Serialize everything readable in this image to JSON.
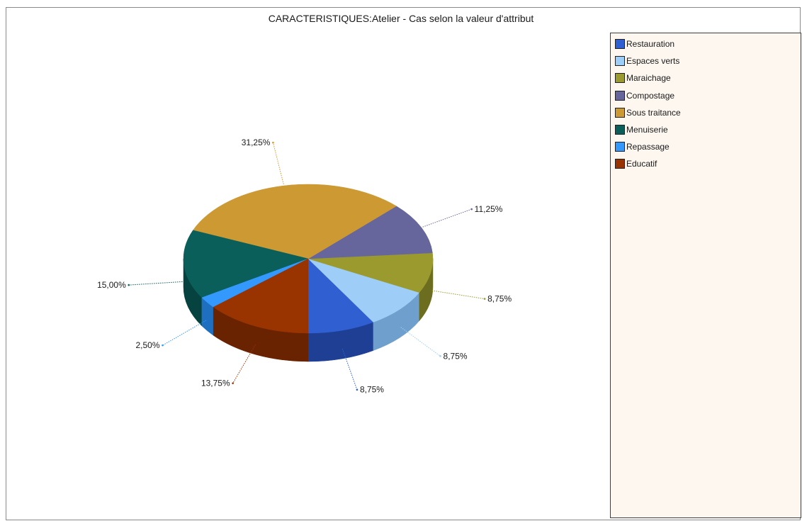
{
  "chart_data": {
    "type": "pie",
    "title": "CARACTERISTIQUES:Atelier - Cas selon la valeur d'attribut",
    "legend_position": "right",
    "slices": [
      {
        "name": "Restauration",
        "value": 8.75,
        "label": "8,75%",
        "color": "#2f5fd0",
        "dark": "#1f3f95"
      },
      {
        "name": "Espaces verts",
        "value": 8.75,
        "label": "8,75%",
        "color": "#9ecdf8",
        "dark": "#6f9fcc"
      },
      {
        "name": "Maraichage",
        "value": 8.75,
        "label": "8,75%",
        "color": "#9a9a2e",
        "dark": "#6d6d1f"
      },
      {
        "name": "Compostage",
        "value": 11.25,
        "label": "11,25%",
        "color": "#66669c",
        "dark": "#46466f"
      },
      {
        "name": "Sous traitance",
        "value": 31.25,
        "label": "31,25%",
        "color": "#cc9933",
        "dark": "#946e22"
      },
      {
        "name": "Menuiserie",
        "value": 15.0,
        "label": "15,00%",
        "color": "#0a5f5a",
        "dark": "#064340"
      },
      {
        "name": "Repassage",
        "value": 2.5,
        "label": "2,50%",
        "color": "#3399ff",
        "dark": "#1f6fc0"
      },
      {
        "name": "Educatif",
        "value": 13.75,
        "label": "13,75%",
        "color": "#993300",
        "dark": "#6a2300"
      }
    ]
  }
}
